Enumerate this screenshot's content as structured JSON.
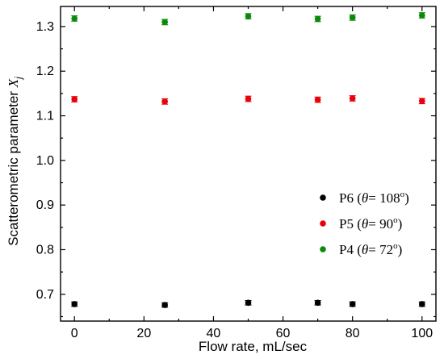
{
  "chart_data": {
    "type": "scatter",
    "xlabel": "Flow rate, mL/sec",
    "ylabel_main": "Scatterometric parameter ",
    "ylabel_symbol": "X",
    "ylabel_sub": "j",
    "xlim": [
      -4,
      104
    ],
    "ylim": [
      0.64,
      1.345
    ],
    "xticks": [
      0,
      20,
      40,
      60,
      80,
      100
    ],
    "yticks": [
      0.7,
      0.8,
      0.9,
      1.0,
      1.1,
      1.2,
      1.3
    ],
    "ytick_labels": [
      "0.7",
      "0.8",
      "0.9",
      "1.0",
      "1.1",
      "1.2",
      "1.3"
    ],
    "legend_position": "center-right",
    "grid": false,
    "series": [
      {
        "name": "P6",
        "theta_symbol": "θ",
        "theta_value": "= 108",
        "degree": "o",
        "color": "#000000",
        "x": [
          0,
          26,
          50,
          70,
          80,
          100
        ],
        "y": [
          0.678,
          0.676,
          0.681,
          0.681,
          0.678,
          0.678
        ],
        "err": [
          0.005,
          0.005,
          0.005,
          0.005,
          0.005,
          0.005
        ]
      },
      {
        "name": "P5",
        "theta_symbol": "θ",
        "theta_value": "= 90",
        "degree": "o",
        "color": "#e8000b",
        "x": [
          0,
          26,
          50,
          70,
          80,
          100
        ],
        "y": [
          1.137,
          1.132,
          1.138,
          1.136,
          1.139,
          1.133
        ],
        "err": [
          0.006,
          0.006,
          0.006,
          0.006,
          0.006,
          0.006
        ]
      },
      {
        "name": "P4",
        "theta_symbol": "θ",
        "theta_value": "= 72",
        "degree": "o",
        "color": "#0a8a0a",
        "x": [
          0,
          26,
          50,
          70,
          80,
          100
        ],
        "y": [
          1.318,
          1.31,
          1.323,
          1.317,
          1.32,
          1.325
        ],
        "err": [
          0.006,
          0.006,
          0.006,
          0.006,
          0.006,
          0.006
        ]
      }
    ]
  }
}
